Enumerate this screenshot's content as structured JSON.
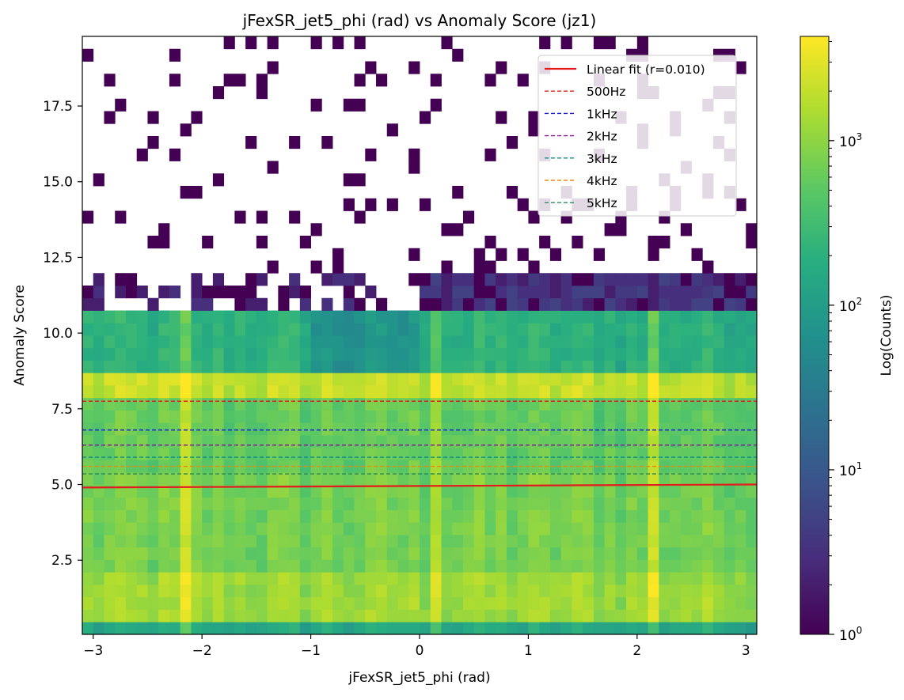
{
  "chart_data": {
    "type": "heatmap",
    "title": "jFexSR_jet5_phi (rad) vs Anomaly Score (jz1)",
    "xlabel": "jFexSR_jet5_phi (rad)",
    "ylabel": "Anomaly Score",
    "colorbar_label": "Log(Counts)",
    "colorscale": "viridis",
    "color_scale_type": "log",
    "xlim": [
      -3.1,
      3.1
    ],
    "ylim": [
      0.05,
      19.8
    ],
    "x_ticks": [
      -3,
      -2,
      -1,
      0,
      1,
      2,
      3
    ],
    "x_tick_labels": [
      "−3",
      "−2",
      "−1",
      "0",
      "1",
      "2",
      "3"
    ],
    "y_ticks": [
      2.5,
      5.0,
      7.5,
      10.0,
      12.5,
      15.0,
      17.5
    ],
    "y_tick_labels": [
      "2.5",
      "5.0",
      "7.5",
      "10.0",
      "12.5",
      "15.0",
      "17.5"
    ],
    "colorbar_ticks": [
      {
        "value": 1,
        "label": "10",
        "exp": "0"
      },
      {
        "value": 10,
        "label": "10",
        "exp": "1"
      },
      {
        "value": 100,
        "label": "10",
        "exp": "2"
      },
      {
        "value": 1000,
        "label": "10",
        "exp": "3"
      }
    ],
    "colorbar_range": [
      1,
      4300
    ],
    "grid": false,
    "legend_position": "top-right",
    "bins": {
      "x_count": 62,
      "y_count": 48
    },
    "band_counts": [
      {
        "y_range": [
          0.05,
          0.45
        ],
        "counts": 180,
        "note": "lowest row"
      },
      {
        "y_range": [
          0.45,
          2.0
        ],
        "counts": 1500
      },
      {
        "y_range": [
          2.0,
          5.3
        ],
        "counts": 900
      },
      {
        "y_range": [
          5.3,
          7.8
        ],
        "counts": 700
      },
      {
        "y_range": [
          7.8,
          8.7
        ],
        "counts": 2500
      },
      {
        "y_range": [
          8.7,
          10.7
        ],
        "counts": 250
      },
      {
        "y_range": [
          10.7,
          11.9
        ],
        "counts": 3
      },
      {
        "y_range": [
          11.9,
          19.8
        ],
        "counts": 1
      }
    ],
    "series": [
      {
        "name": "Linear fit (r=0.010)",
        "style": "solid",
        "color": "#e41a1c",
        "x": [
          -3.1,
          3.1
        ],
        "y": [
          4.9,
          5.0
        ]
      },
      {
        "name": "500Hz",
        "style": "dashed",
        "color": "#e41a1c",
        "y": 7.75
      },
      {
        "name": "1kHz",
        "style": "dashed",
        "color": "#1f1fd9",
        "y": 6.8
      },
      {
        "name": "2kHz",
        "style": "dashed",
        "color": "#8b1a9b",
        "y": 6.3
      },
      {
        "name": "3kHz",
        "style": "dashed",
        "color": "#138a8a",
        "y": 5.9
      },
      {
        "name": "4kHz",
        "style": "dashed",
        "color": "#f0860e",
        "y": 5.6
      },
      {
        "name": "5kHz",
        "style": "dashed",
        "color": "#2b8a5c",
        "y": 5.35
      }
    ]
  }
}
